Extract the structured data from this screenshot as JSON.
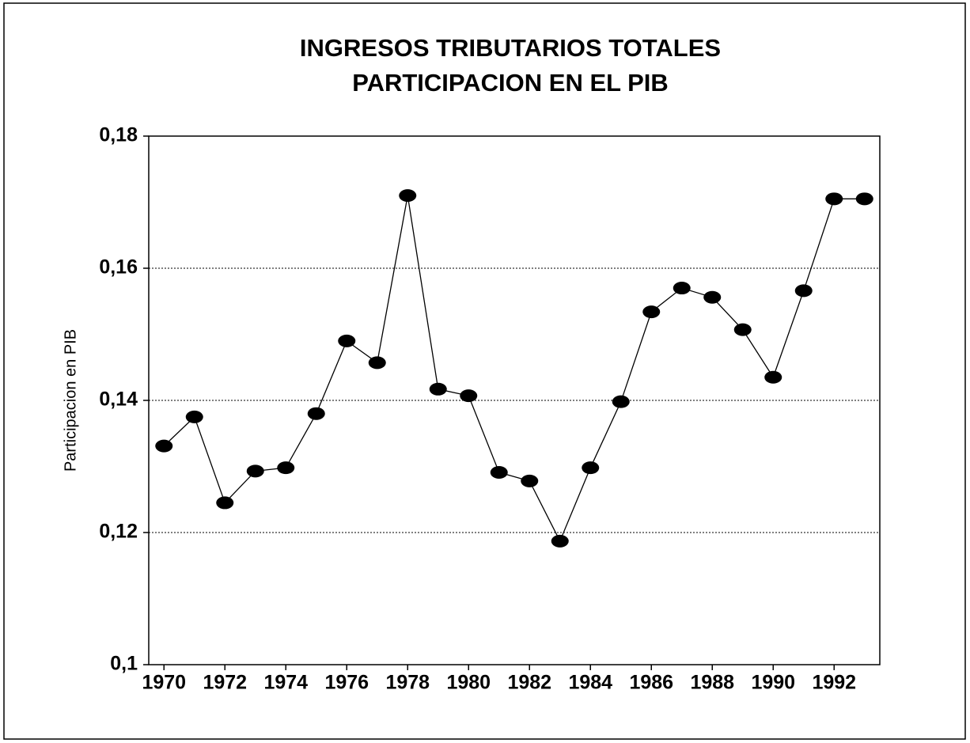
{
  "chart_data": {
    "type": "line",
    "title": "INGRESOS TRIBUTARIOS TOTALES",
    "subtitle": "PARTICIPACION EN EL PIB",
    "y_label": "Participacion en PIB",
    "x": [
      1970,
      1971,
      1972,
      1973,
      1974,
      1975,
      1976,
      1977,
      1978,
      1979,
      1980,
      1981,
      1982,
      1983,
      1984,
      1985,
      1986,
      1987,
      1988,
      1989,
      1990,
      1991,
      1992,
      1993
    ],
    "series": [
      {
        "name": "Participacion en PIB",
        "color": "#000000",
        "values": [
          0.1331,
          0.1375,
          0.1245,
          0.1293,
          0.1298,
          0.138,
          0.149,
          0.1457,
          0.171,
          0.1417,
          0.1407,
          0.1291,
          0.1278,
          0.1187,
          0.1298,
          0.1398,
          0.1534,
          0.157,
          0.1556,
          0.1507,
          0.1435,
          0.1566,
          0.1705,
          0.1705
        ]
      }
    ],
    "xlim": [
      1969.5,
      1993.5
    ],
    "xticks": [
      1970,
      1972,
      1974,
      1976,
      1978,
      1980,
      1982,
      1984,
      1986,
      1988,
      1990,
      1992
    ],
    "ylim": [
      0.1,
      0.18
    ],
    "yticks": [
      {
        "value": 0.1,
        "label": "0,1"
      },
      {
        "value": 0.12,
        "label": "0,12"
      },
      {
        "value": 0.14,
        "label": "0,14"
      },
      {
        "value": 0.16,
        "label": "0,16"
      },
      {
        "value": 0.18,
        "label": "0,18"
      }
    ],
    "grid": true
  }
}
